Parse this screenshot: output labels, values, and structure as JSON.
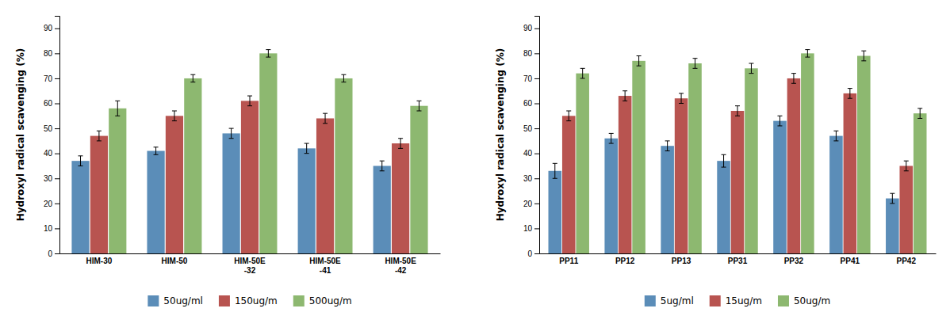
{
  "chart_data": [
    {
      "type": "bar",
      "categories": [
        "HIM-30",
        "HIM-50",
        "HIM-50E\n-32",
        "HIM-50E\n-41",
        "HIM-50E\n-42"
      ],
      "series": [
        {
          "name": "50ug/ml",
          "color": "#5B8DB8",
          "values": [
            37,
            41,
            48,
            42,
            35
          ],
          "errors": [
            2,
            1.5,
            2,
            2,
            2
          ]
        },
        {
          "name": "150ug/m",
          "color": "#B85450",
          "values": [
            47,
            55,
            61,
            54,
            44
          ],
          "errors": [
            2,
            2,
            2,
            2,
            2
          ]
        },
        {
          "name": "500ug/m",
          "color": "#8DB870",
          "values": [
            58,
            70,
            80,
            70,
            59
          ],
          "errors": [
            3,
            1.5,
            1.5,
            1.5,
            2
          ]
        }
      ],
      "y_label": "Hydroxyl radical scavenging (%)",
      "ylim": [
        0,
        95
      ],
      "yticks": [
        0,
        10,
        20,
        30,
        40,
        50,
        60,
        70,
        80,
        90
      ],
      "grid": false,
      "legend": "bottom"
    },
    {
      "type": "bar",
      "categories": [
        "PP11",
        "PP12",
        "PP13",
        "PP31",
        "PP32",
        "PP41",
        "PP42"
      ],
      "series": [
        {
          "name": "5ug/ml",
          "color": "#5B8DB8",
          "values": [
            33,
            46,
            43,
            37,
            53,
            47,
            22
          ],
          "errors": [
            3,
            2,
            2,
            2.5,
            2,
            2,
            2
          ]
        },
        {
          "name": "15ug/m",
          "color": "#B85450",
          "values": [
            55,
            63,
            62,
            57,
            70,
            64,
            35
          ],
          "errors": [
            2,
            2,
            2,
            2,
            2,
            2,
            2
          ]
        },
        {
          "name": "50ug/m",
          "color": "#8DB870",
          "values": [
            72,
            77,
            76,
            74,
            80,
            79,
            56
          ],
          "errors": [
            2,
            2,
            2,
            2,
            1.5,
            2,
            2
          ]
        }
      ],
      "y_label": "Hydroxyl radical scavenging (%)",
      "ylim": [
        0,
        95
      ],
      "yticks": [
        0,
        10,
        20,
        30,
        40,
        50,
        60,
        70,
        80,
        90
      ],
      "grid": false,
      "legend": "bottom"
    }
  ]
}
